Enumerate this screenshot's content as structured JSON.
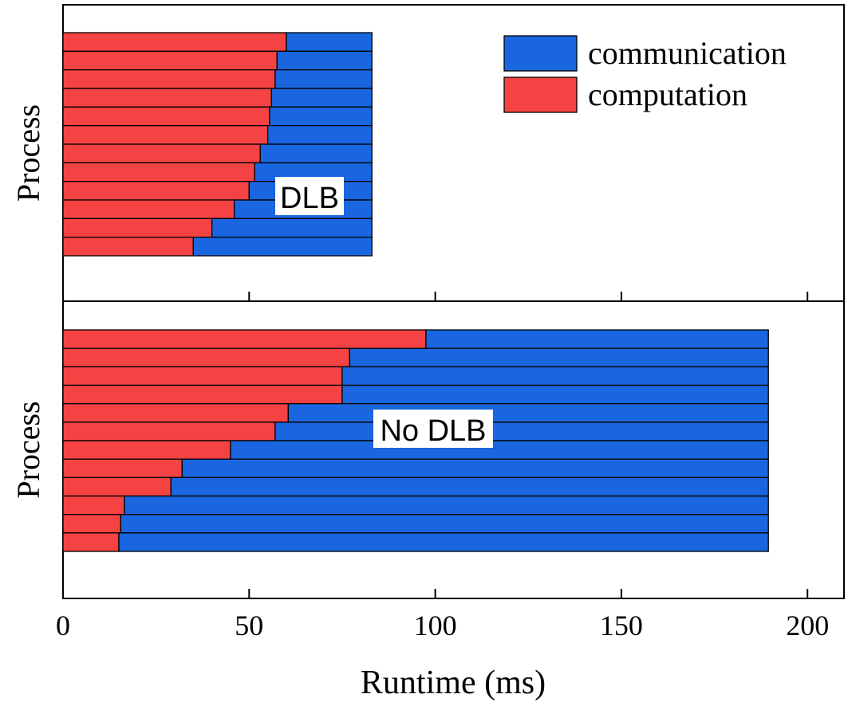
{
  "chart_data": {
    "type": "bar",
    "orientation": "horizontal",
    "stacked": true,
    "xlabel": "Runtime (ms)",
    "xlim": [
      0,
      210
    ],
    "xticks": [
      0,
      50,
      100,
      150,
      200
    ],
    "legend": {
      "position": "top-right",
      "entries": [
        {
          "name": "communication",
          "color": "#1a66e0"
        },
        {
          "name": "computation",
          "color": "#f54242"
        }
      ]
    },
    "panels": [
      {
        "ylabel": "Process",
        "annotation": "DLB",
        "series": [
          {
            "name": "computation",
            "color": "#f54242",
            "values": [
              60,
              57.5,
              57,
              56,
              55.5,
              55,
              53,
              51.5,
              50,
              46,
              40,
              35
            ]
          },
          {
            "name": "communication",
            "color": "#1a66e0",
            "values": [
              23,
              25.5,
              26,
              27,
              27.5,
              28,
              30,
              31.5,
              33,
              37,
              43,
              48
            ]
          }
        ]
      },
      {
        "ylabel": "Process",
        "annotation": "No DLB",
        "series": [
          {
            "name": "computation",
            "color": "#f54242",
            "values": [
              97.5,
              77,
              75,
              75,
              60.5,
              57,
              45,
              32,
              29,
              16.5,
              15.5,
              15
            ]
          },
          {
            "name": "communication",
            "color": "#1a66e0",
            "values": [
              92,
              112.5,
              114.5,
              114.5,
              129,
              132.5,
              144.5,
              157.5,
              160.5,
              173,
              174,
              174.5
            ]
          }
        ]
      }
    ]
  }
}
